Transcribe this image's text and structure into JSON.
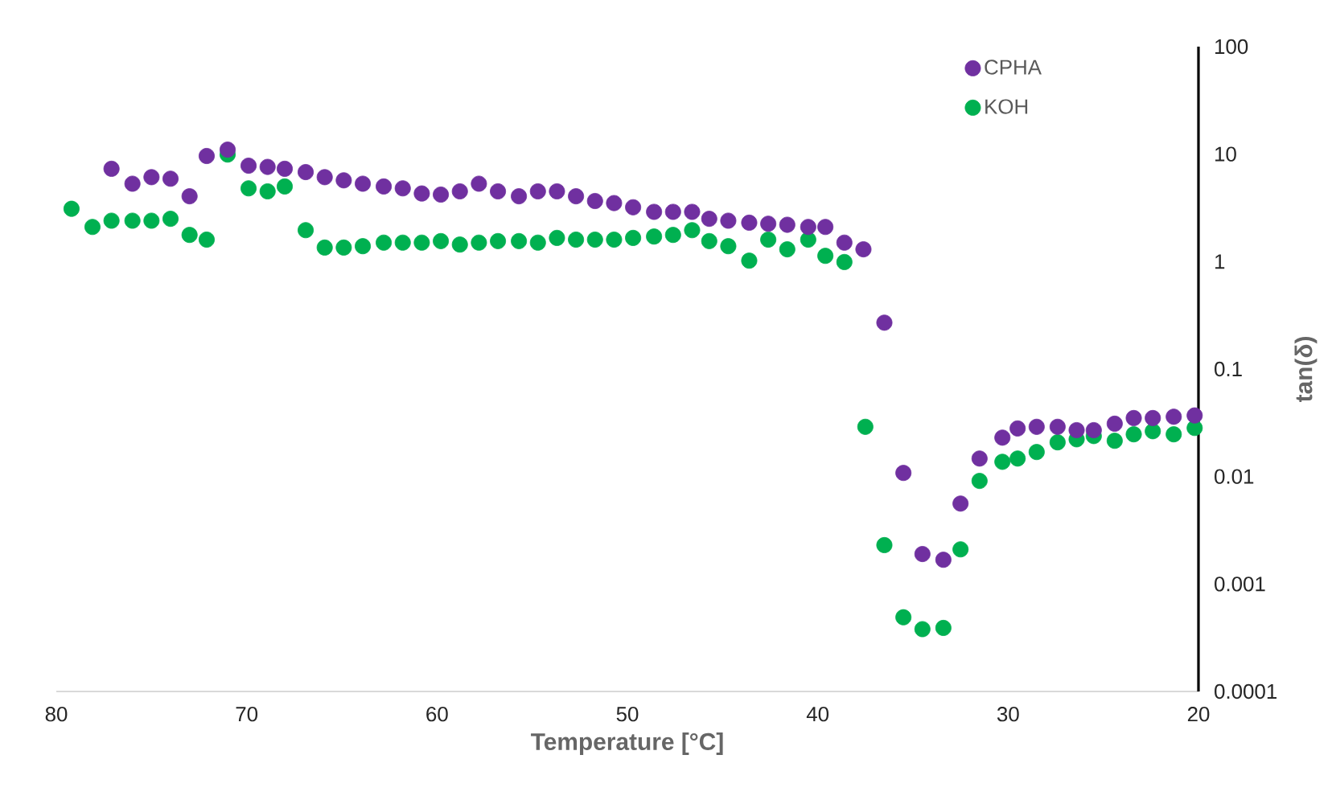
{
  "chart_data": {
    "type": "scatter",
    "xlabel": "Temperature [°C]",
    "ylabel": "tan(δ)",
    "xlim": [
      80,
      20
    ],
    "xticks": [
      80,
      70,
      60,
      50,
      40,
      30,
      20
    ],
    "ylim": [
      0.0001,
      100
    ],
    "yticks": [
      0.0001,
      0.001,
      0.01,
      0.1,
      1,
      10,
      100
    ],
    "log": "y",
    "legend": "top right",
    "marker": "circle",
    "series": [
      {
        "name": "CPHA",
        "color": "#7030a0",
        "x": [
          77.1,
          76.0,
          75.0,
          74.0,
          73.0,
          72.1,
          71.0,
          69.9,
          68.9,
          68.0,
          66.9,
          65.9,
          64.9,
          63.9,
          62.8,
          61.8,
          60.8,
          59.8,
          58.8,
          57.8,
          56.8,
          55.7,
          54.7,
          53.7,
          52.7,
          51.7,
          50.7,
          49.7,
          48.6,
          47.6,
          46.6,
          45.7,
          44.7,
          43.6,
          42.6,
          41.6,
          40.5,
          39.6,
          38.6,
          37.6,
          36.5,
          35.5,
          34.5,
          33.4,
          32.5,
          31.5,
          30.3,
          29.5,
          28.5,
          27.4,
          26.4,
          25.5,
          24.4,
          23.4,
          22.4,
          21.3,
          20.2
        ],
        "values": [
          7.3,
          5.3,
          6.1,
          5.9,
          4.05,
          9.6,
          11.0,
          7.8,
          7.6,
          7.3,
          6.8,
          6.1,
          5.7,
          5.3,
          5.0,
          4.8,
          4.3,
          4.2,
          4.5,
          5.3,
          4.5,
          4.05,
          4.5,
          4.5,
          4.05,
          3.66,
          3.5,
          3.2,
          2.9,
          2.9,
          2.9,
          2.5,
          2.4,
          2.3,
          2.25,
          2.2,
          2.1,
          2.1,
          1.5,
          1.3,
          0.27,
          0.0108,
          0.0019,
          0.00168,
          0.0056,
          0.0147,
          0.023,
          0.028,
          0.029,
          0.029,
          0.027,
          0.027,
          0.031,
          0.035,
          0.035,
          0.036,
          0.037
        ]
      },
      {
        "name": "KOH",
        "color": "#00b050",
        "x": [
          79.2,
          78.1,
          77.1,
          76.0,
          75.0,
          74.0,
          73.0,
          72.1,
          71.0,
          69.9,
          68.9,
          68.0,
          66.9,
          65.9,
          64.9,
          63.9,
          62.8,
          61.8,
          60.8,
          59.8,
          58.8,
          57.8,
          56.8,
          55.7,
          54.7,
          53.7,
          52.7,
          51.7,
          50.7,
          49.7,
          48.6,
          47.6,
          46.6,
          45.7,
          44.7,
          43.6,
          42.6,
          41.6,
          40.5,
          39.6,
          38.6,
          37.5,
          36.5,
          35.5,
          34.5,
          33.4,
          32.5,
          31.5,
          30.3,
          29.5,
          28.5,
          27.4,
          26.4,
          25.5,
          24.4,
          23.4,
          22.4,
          21.3,
          20.2
        ],
        "values": [
          3.1,
          2.1,
          2.4,
          2.4,
          2.4,
          2.5,
          1.77,
          1.6,
          9.9,
          4.8,
          4.5,
          5.0,
          1.96,
          1.35,
          1.35,
          1.39,
          1.5,
          1.5,
          1.5,
          1.55,
          1.44,
          1.5,
          1.55,
          1.55,
          1.5,
          1.66,
          1.6,
          1.6,
          1.6,
          1.66,
          1.71,
          1.77,
          1.96,
          1.55,
          1.39,
          1.02,
          1.6,
          1.3,
          1.6,
          1.13,
          0.99,
          0.029,
          0.0023,
          0.00049,
          0.00038,
          0.00039,
          0.0021,
          0.0091,
          0.0137,
          0.0147,
          0.0169,
          0.0208,
          0.0222,
          0.0238,
          0.0215,
          0.0247,
          0.0264,
          0.0247,
          0.0283
        ]
      }
    ]
  }
}
